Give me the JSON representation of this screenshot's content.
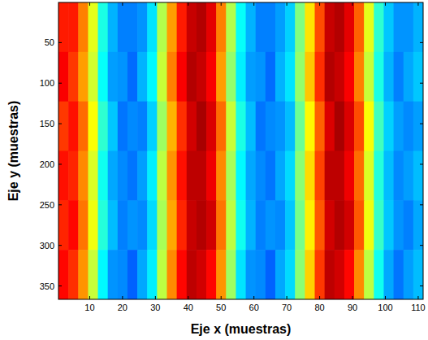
{
  "chart_data": {
    "type": "heatmap",
    "x_label": "Eje x (muestras)",
    "y_label": "Eje y (muestras)",
    "xlim": [
      0.5,
      111.5
    ],
    "ylim": [
      0.5,
      366.5
    ],
    "xticks": [
      10,
      20,
      30,
      40,
      50,
      60,
      70,
      80,
      90,
      100,
      110
    ],
    "yticks": [
      50,
      100,
      150,
      200,
      250,
      300,
      350
    ],
    "zlim": [
      0,
      1
    ],
    "x_bins": [
      0.5,
      3.5,
      6.5,
      9.5,
      12.5,
      15.5,
      18.5,
      21.5,
      24.5,
      27.5,
      30.5,
      33.5,
      36.5,
      39.5,
      42.5,
      45.5,
      48.5,
      51.5,
      54.5,
      57.5,
      60.5,
      63.5,
      66.5,
      69.5,
      72.5,
      75.5,
      78.5,
      81.5,
      84.5,
      87.5,
      90.5,
      93.5,
      96.5,
      99.5,
      102.5,
      105.5,
      108.5,
      111.5
    ],
    "y_bins": [
      0.5,
      61.5,
      122.5,
      183.5,
      244.5,
      305.5,
      366.5
    ],
    "cells": [
      [
        0.85,
        0.85,
        0.75,
        0.6,
        0.4,
        0.3,
        0.25,
        0.25,
        0.27,
        0.35,
        0.55,
        0.72,
        0.85,
        0.93,
        0.95,
        0.9,
        0.75,
        0.55,
        0.38,
        0.3,
        0.25,
        0.25,
        0.28,
        0.33,
        0.5,
        0.65,
        0.8,
        0.93,
        0.95,
        0.9,
        0.78,
        0.6,
        0.42,
        0.32,
        0.27,
        0.27,
        0.3
      ],
      [
        0.88,
        0.82,
        0.72,
        0.58,
        0.38,
        0.28,
        0.27,
        0.23,
        0.3,
        0.37,
        0.57,
        0.75,
        0.88,
        0.95,
        0.93,
        0.88,
        0.72,
        0.52,
        0.36,
        0.28,
        0.27,
        0.23,
        0.3,
        0.35,
        0.52,
        0.68,
        0.83,
        0.95,
        0.93,
        0.88,
        0.75,
        0.57,
        0.4,
        0.3,
        0.25,
        0.29,
        0.32
      ],
      [
        0.82,
        0.86,
        0.77,
        0.62,
        0.42,
        0.32,
        0.24,
        0.26,
        0.25,
        0.33,
        0.53,
        0.7,
        0.83,
        0.92,
        0.96,
        0.91,
        0.77,
        0.57,
        0.4,
        0.31,
        0.24,
        0.26,
        0.27,
        0.31,
        0.48,
        0.63,
        0.78,
        0.91,
        0.96,
        0.91,
        0.8,
        0.62,
        0.44,
        0.33,
        0.28,
        0.26,
        0.28
      ],
      [
        0.86,
        0.84,
        0.74,
        0.59,
        0.39,
        0.29,
        0.26,
        0.24,
        0.28,
        0.36,
        0.56,
        0.73,
        0.86,
        0.94,
        0.94,
        0.89,
        0.74,
        0.54,
        0.37,
        0.29,
        0.26,
        0.24,
        0.29,
        0.34,
        0.51,
        0.66,
        0.81,
        0.94,
        0.94,
        0.89,
        0.77,
        0.59,
        0.41,
        0.31,
        0.26,
        0.28,
        0.31
      ],
      [
        0.84,
        0.87,
        0.76,
        0.61,
        0.41,
        0.31,
        0.25,
        0.27,
        0.26,
        0.34,
        0.54,
        0.71,
        0.84,
        0.93,
        0.95,
        0.92,
        0.76,
        0.56,
        0.39,
        0.3,
        0.25,
        0.27,
        0.26,
        0.32,
        0.49,
        0.64,
        0.79,
        0.92,
        0.95,
        0.92,
        0.79,
        0.61,
        0.43,
        0.32,
        0.27,
        0.25,
        0.29
      ],
      [
        0.87,
        0.83,
        0.73,
        0.57,
        0.37,
        0.27,
        0.26,
        0.22,
        0.29,
        0.36,
        0.56,
        0.74,
        0.87,
        0.94,
        0.92,
        0.87,
        0.73,
        0.53,
        0.35,
        0.27,
        0.26,
        0.22,
        0.29,
        0.34,
        0.51,
        0.67,
        0.82,
        0.94,
        0.92,
        0.87,
        0.74,
        0.56,
        0.39,
        0.29,
        0.24,
        0.28,
        0.31
      ]
    ]
  }
}
